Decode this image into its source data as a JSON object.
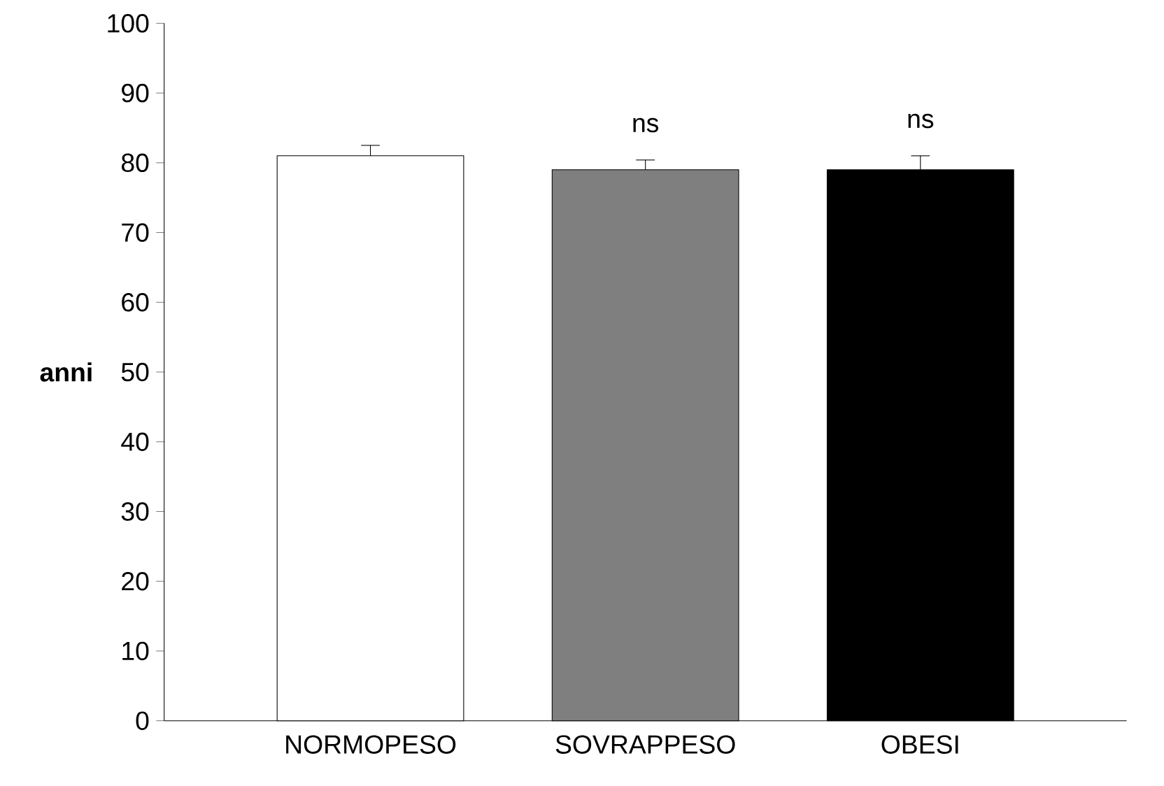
{
  "chart_data": {
    "type": "bar",
    "ylabel": "anni",
    "categories": [
      "NORMOPESO",
      "SOVRAPPESO",
      "OBESI"
    ],
    "values": [
      81,
      79,
      79
    ],
    "errors": [
      1.5,
      1.4,
      2
    ],
    "colors": [
      "#ffffff",
      "#7f7f7f",
      "#000000"
    ],
    "ylim": [
      0,
      100
    ],
    "yticks": [
      0,
      10,
      20,
      30,
      40,
      50,
      60,
      70,
      80,
      90,
      100
    ],
    "grid": false,
    "annotations": [
      "ns",
      "ns"
    ]
  }
}
